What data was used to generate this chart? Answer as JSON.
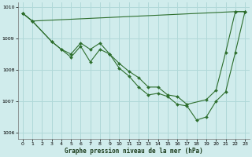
{
  "background_color": "#d0ecec",
  "grid_color": "#b0d8d8",
  "line_color": "#2d6e2d",
  "title": "Graphe pression niveau de la mer (hPa)",
  "xlim": [
    -0.5,
    23.5
  ],
  "ylim": [
    1005.8,
    1010.15
  ],
  "yticks": [
    1006,
    1007,
    1008,
    1009,
    1010
  ],
  "xticks": [
    0,
    1,
    2,
    3,
    4,
    5,
    6,
    7,
    8,
    9,
    10,
    11,
    12,
    13,
    14,
    15,
    16,
    17,
    18,
    19,
    20,
    21,
    22,
    23
  ],
  "series": [
    {
      "x": [
        0,
        1,
        22,
        23
      ],
      "y": [
        1009.8,
        1009.55,
        1009.85,
        1009.85
      ]
    },
    {
      "x": [
        0,
        1,
        3,
        4,
        5,
        6,
        7,
        8,
        9,
        10,
        11,
        12,
        13,
        14,
        15,
        16,
        17,
        19,
        20,
        21,
        22,
        23
      ],
      "y": [
        1009.8,
        1009.55,
        1008.9,
        1008.65,
        1008.5,
        1008.85,
        1008.65,
        1008.85,
        1008.5,
        1008.2,
        1007.95,
        1007.75,
        1007.45,
        1007.45,
        1007.2,
        1007.15,
        1006.9,
        1007.05,
        1007.35,
        1008.55,
        1009.85,
        1009.85
      ]
    },
    {
      "x": [
        0,
        1,
        3,
        4,
        5,
        6,
        7,
        8,
        9,
        10,
        11,
        12,
        13,
        14,
        15,
        16,
        17,
        18,
        19,
        20,
        21,
        22,
        23
      ],
      "y": [
        1009.8,
        1009.55,
        1008.9,
        1008.65,
        1008.4,
        1008.75,
        1008.25,
        1008.65,
        1008.5,
        1008.05,
        1007.8,
        1007.45,
        1007.2,
        1007.25,
        1007.15,
        1006.9,
        1006.85,
        1006.4,
        1006.5,
        1007.0,
        1007.3,
        1008.55,
        1009.85
      ]
    }
  ]
}
